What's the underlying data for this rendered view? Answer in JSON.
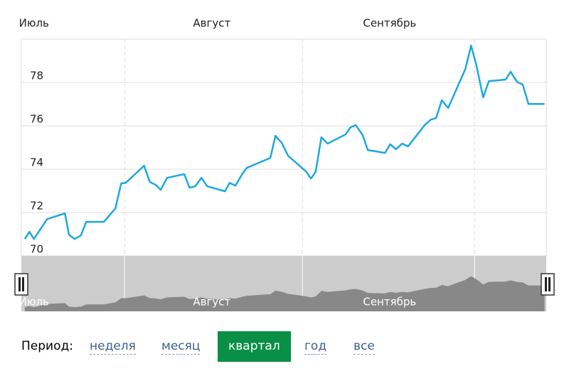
{
  "chart_data": {
    "type": "line",
    "x": [
      13.6,
      14.4,
      15.2,
      17.5,
      20.6,
      21.3,
      22.3,
      23.4,
      24.3,
      27.4,
      29.4,
      30.4,
      31.2,
      34.4,
      35.4,
      36.4,
      37.3,
      38.4,
      41.4,
      42.3,
      43.3,
      44.4,
      45.4,
      48.5,
      49.3,
      50.3,
      51.5,
      52.3,
      56.4,
      57.3,
      58.4,
      59.5,
      62.6,
      63.5,
      64.3,
      65.3,
      66.4,
      69.5,
      70.4,
      71.3,
      72.5,
      73.4,
      76.4,
      77.3,
      78.3,
      79.4,
      80.4,
      83.4,
      84.4,
      85.3,
      86.3,
      87.4,
      90.4,
      91.4,
      92.3,
      93.5,
      94.5,
      97.4,
      98.3,
      99.4,
      100.4,
      101.4,
      104.2
    ],
    "series": [
      {
        "color": "#1ba8e2",
        "values": [
          70.78,
          71.11,
          70.78,
          71.7,
          71.96,
          70.98,
          70.78,
          70.95,
          71.57,
          71.57,
          72.19,
          73.34,
          73.37,
          74.16,
          73.41,
          73.28,
          73.05,
          73.6,
          73.77,
          73.15,
          73.21,
          73.6,
          73.21,
          72.98,
          73.37,
          73.24,
          73.77,
          74.06,
          74.52,
          75.54,
          75.21,
          74.62,
          73.9,
          73.57,
          73.87,
          75.47,
          75.18,
          75.6,
          75.93,
          76.03,
          75.57,
          74.88,
          74.75,
          75.15,
          74.92,
          75.18,
          75.05,
          76.06,
          76.29,
          76.36,
          77.18,
          76.82,
          78.62,
          79.7,
          78.82,
          77.31,
          78.06,
          78.13,
          78.49,
          78.03,
          77.9,
          77.01,
          77.01
        ]
      }
    ],
    "xlim": [
      13,
      104.5
    ],
    "xticks": [
      {
        "value": 15.2,
        "label": "Июль"
      },
      {
        "value": 46.2,
        "label": "Август"
      },
      {
        "value": 77.2,
        "label": "Сентябрь"
      }
    ],
    "xgrid": [
      31,
      62,
      92
    ],
    "ylim": [
      70,
      80
    ],
    "yticks": [
      70,
      72,
      74,
      76,
      78
    ],
    "grid": true,
    "navigator_color": "#888888"
  },
  "controls": {
    "label": "Период:",
    "options": [
      "неделя",
      "месяц",
      "квартал",
      "год",
      "все"
    ],
    "active": 2
  }
}
